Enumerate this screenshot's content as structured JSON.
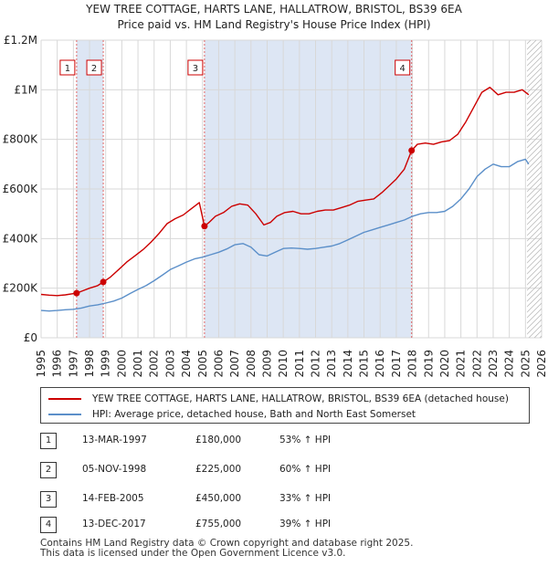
{
  "header": {
    "title_line1": "YEW TREE COTTAGE, HARTS LANE, HALLATROW, BRISTOL, BS39 6EA",
    "title_line2": "Price paid vs. HM Land Registry's House Price Index (HPI)"
  },
  "chart_data": {
    "type": "line",
    "title": "YEW TREE COTTAGE, HARTS LANE, HALLATROW, BRISTOL, BS39 6EA — Price paid vs. HM Land Registry's House Price Index (HPI)",
    "xlabel": "",
    "ylabel": "",
    "xlim": [
      1995,
      2026
    ],
    "ylim": [
      0,
      1200000
    ],
    "grid": true,
    "x_ticks": [
      "1995",
      "1996",
      "1997",
      "1998",
      "1999",
      "2000",
      "2001",
      "2002",
      "2003",
      "2004",
      "2005",
      "2006",
      "2007",
      "2008",
      "2009",
      "2010",
      "2011",
      "2012",
      "2013",
      "2014",
      "2015",
      "2016",
      "2017",
      "2018",
      "2019",
      "2020",
      "2021",
      "2022",
      "2023",
      "2024",
      "2025",
      "2026"
    ],
    "y_ticks": [
      {
        "value": 0,
        "label": "£0"
      },
      {
        "value": 200000,
        "label": "£200K"
      },
      {
        "value": 400000,
        "label": "£400K"
      },
      {
        "value": 600000,
        "label": "£600K"
      },
      {
        "value": 800000,
        "label": "£800K"
      },
      {
        "value": 1000000,
        "label": "£1M"
      },
      {
        "value": 1200000,
        "label": "£1.2M"
      }
    ],
    "series": [
      {
        "name": "YEW TREE COTTAGE, HARTS LANE, HALLATROW, BRISTOL, BS39 6EA (detached house)",
        "color": "#cc0000",
        "x": [
          1995.0,
          1995.5,
          1996.0,
          1996.5,
          1997.2,
          1997.6,
          1998.0,
          1998.5,
          1998.85,
          1999.3,
          1999.8,
          2000.3,
          2000.8,
          2001.3,
          2001.8,
          2002.3,
          2002.8,
          2003.3,
          2003.8,
          2004.3,
          2004.8,
          2005.12,
          2005.4,
          2005.8,
          2006.3,
          2006.8,
          2007.3,
          2007.8,
          2008.3,
          2008.8,
          2009.2,
          2009.6,
          2010.1,
          2010.6,
          2011.1,
          2011.6,
          2012.1,
          2012.6,
          2013.1,
          2013.6,
          2014.1,
          2014.6,
          2015.1,
          2015.6,
          2016.1,
          2016.6,
          2017.0,
          2017.5,
          2017.95,
          2018.3,
          2018.8,
          2019.3,
          2019.8,
          2020.3,
          2020.8,
          2021.3,
          2021.8,
          2022.3,
          2022.8,
          2023.3,
          2023.8,
          2024.3,
          2024.8,
          2025.2
        ],
        "values": [
          175000,
          172000,
          170000,
          173000,
          180000,
          190000,
          200000,
          210000,
          225000,
          245000,
          275000,
          305000,
          330000,
          355000,
          385000,
          420000,
          460000,
          480000,
          495000,
          520000,
          545000,
          450000,
          465000,
          490000,
          505000,
          530000,
          540000,
          535000,
          500000,
          455000,
          465000,
          490000,
          505000,
          510000,
          500000,
          500000,
          510000,
          515000,
          515000,
          525000,
          535000,
          550000,
          555000,
          560000,
          585000,
          615000,
          640000,
          680000,
          755000,
          780000,
          785000,
          780000,
          790000,
          795000,
          820000,
          870000,
          930000,
          990000,
          1010000,
          980000,
          990000,
          990000,
          1000000,
          980000
        ]
      },
      {
        "name": "HPI: Average price, detached house, Bath and North East Somerset",
        "color": "#5b8fc9",
        "x": [
          1995.0,
          1995.5,
          1996.0,
          1996.5,
          1997.0,
          1997.5,
          1998.0,
          1998.5,
          1999.0,
          1999.5,
          2000.0,
          2000.5,
          2001.0,
          2001.5,
          2002.0,
          2002.5,
          2003.0,
          2003.5,
          2004.0,
          2004.5,
          2005.0,
          2005.5,
          2006.0,
          2006.5,
          2007.0,
          2007.5,
          2008.0,
          2008.5,
          2009.0,
          2009.5,
          2010.0,
          2010.5,
          2011.0,
          2011.5,
          2012.0,
          2012.5,
          2013.0,
          2013.5,
          2014.0,
          2014.5,
          2015.0,
          2015.5,
          2016.0,
          2016.5,
          2017.0,
          2017.5,
          2018.0,
          2018.5,
          2019.0,
          2019.5,
          2020.0,
          2020.5,
          2021.0,
          2021.5,
          2022.0,
          2022.5,
          2023.0,
          2023.5,
          2024.0,
          2024.5,
          2025.0,
          2025.2
        ],
        "values": [
          110000,
          108000,
          110000,
          113000,
          115000,
          120000,
          128000,
          133000,
          140000,
          148000,
          160000,
          178000,
          195000,
          210000,
          230000,
          252000,
          275000,
          290000,
          305000,
          318000,
          325000,
          335000,
          345000,
          358000,
          375000,
          380000,
          365000,
          335000,
          330000,
          345000,
          360000,
          362000,
          360000,
          357000,
          360000,
          365000,
          370000,
          380000,
          395000,
          410000,
          425000,
          435000,
          445000,
          455000,
          465000,
          475000,
          490000,
          500000,
          505000,
          505000,
          510000,
          530000,
          560000,
          600000,
          650000,
          680000,
          700000,
          690000,
          690000,
          710000,
          720000,
          700000
        ]
      }
    ],
    "sales": [
      {
        "n": "1",
        "x": 1997.2,
        "price": 180000,
        "date": "13-MAR-1997",
        "price_label": "£180,000",
        "hpi": "53% ↑ HPI"
      },
      {
        "n": "2",
        "x": 1998.85,
        "price": 225000,
        "date": "05-NOV-1998",
        "price_label": "£225,000",
        "hpi": "60% ↑ HPI"
      },
      {
        "n": "3",
        "x": 2005.12,
        "price": 450000,
        "date": "14-FEB-2005",
        "price_label": "£450,000",
        "hpi": "33% ↑ HPI"
      },
      {
        "n": "4",
        "x": 2017.95,
        "price": 755000,
        "date": "13-DEC-2017",
        "price_label": "£755,000",
        "hpi": "39% ↑ HPI"
      }
    ]
  },
  "legend": {
    "red_label": "YEW TREE COTTAGE, HARTS LANE, HALLATROW, BRISTOL, BS39 6EA (detached house)",
    "blue_label": "HPI: Average price, detached house, Bath and North East Somerset"
  },
  "table": {
    "rows": [
      {
        "n": "1",
        "date": "13-MAR-1997",
        "price": "£180,000",
        "hpi": "53% ↑ HPI"
      },
      {
        "n": "2",
        "date": "05-NOV-1998",
        "price": "£225,000",
        "hpi": "60% ↑ HPI"
      },
      {
        "n": "3",
        "date": "14-FEB-2005",
        "price": "£450,000",
        "hpi": "33% ↑ HPI"
      },
      {
        "n": "4",
        "date": "13-DEC-2017",
        "price": "£755,000",
        "hpi": "39% ↑ HPI"
      }
    ]
  },
  "footer": {
    "line1": "Contains HM Land Registry data © Crown copyright and database right 2025.",
    "line2": "This data is licensed under the Open Government Licence v3.0."
  }
}
